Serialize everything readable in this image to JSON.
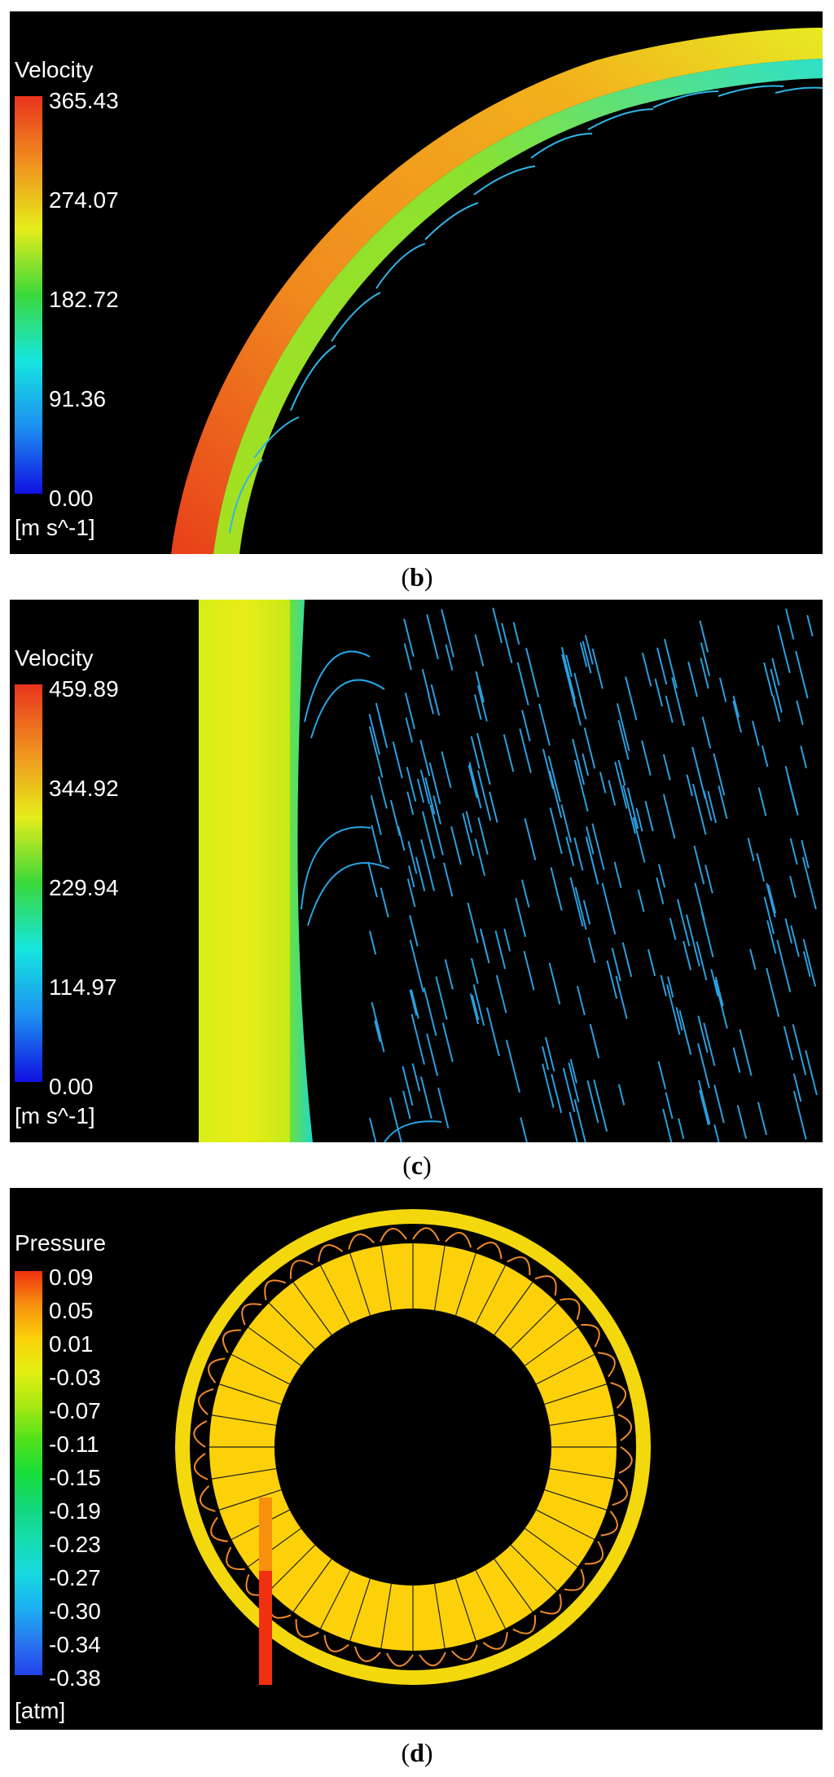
{
  "panels": [
    {
      "caption": "b",
      "legend_title": "Velocity",
      "ticks": [
        "365.43",
        "274.07",
        "182.72",
        "91.36",
        "0.00"
      ],
      "unit": "[m s^-1]"
    },
    {
      "caption": "c",
      "legend_title": "Velocity",
      "ticks": [
        "459.89",
        "344.92",
        "229.94",
        "114.97",
        "0.00"
      ],
      "unit": "[m s^-1]"
    },
    {
      "caption": "d",
      "legend_title": "Pressure",
      "ticks": [
        "0.09",
        "0.05",
        "0.01",
        "-0.03",
        "-0.07",
        "-0.11",
        "-0.15",
        "-0.19",
        "-0.23",
        "-0.27",
        "-0.30",
        "-0.34",
        "-0.38"
      ],
      "unit": "[atm]"
    }
  ],
  "colors": {
    "velocity_scale": [
      "#e8341c",
      "#f09020",
      "#e6ec1a",
      "#3bd83b",
      "#16e6e0",
      "#1d8ff0",
      "#1010e0"
    ],
    "pressure_scale": [
      "#f03010",
      "#f6900e",
      "#fcd10a",
      "#e3ef12",
      "#a6e812",
      "#52e21b",
      "#18dd38",
      "#14d77a",
      "#16dcb0",
      "#18d8e0",
      "#1bb0f2",
      "#2a78f0",
      "#2240e8"
    ],
    "vector": "#2fa6e6",
    "blade_outline": "#f08a2a",
    "hub": "#fcd10a"
  }
}
